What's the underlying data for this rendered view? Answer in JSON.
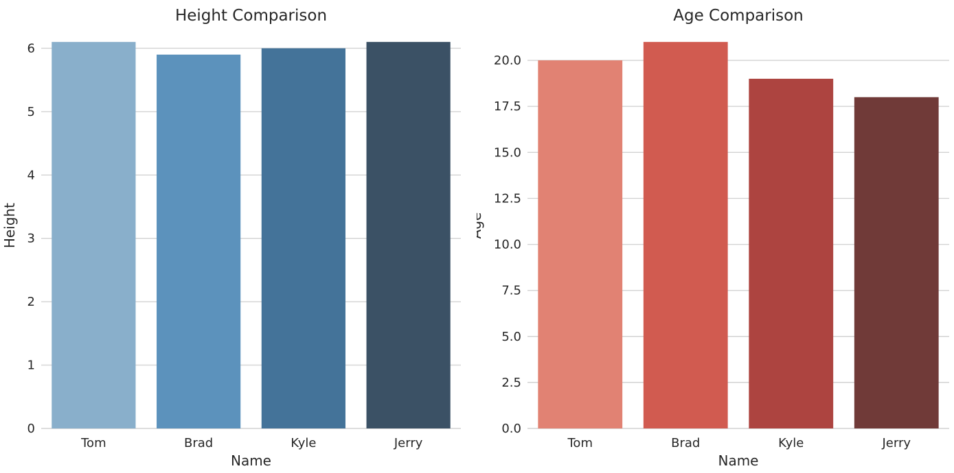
{
  "style": {
    "background": "#ffffff",
    "grid_color": "#d2d2d2",
    "text_color": "#262626"
  },
  "chart_data": [
    {
      "type": "bar",
      "title": "Height Comparison",
      "xlabel": "Name",
      "ylabel": "Height",
      "categories": [
        "Tom",
        "Brad",
        "Kyle",
        "Jerry"
      ],
      "values": [
        6.1,
        5.9,
        6.0,
        6.1
      ],
      "bar_colors": [
        "#89AFCB",
        "#5C92BC",
        "#447399",
        "#3B5165"
      ],
      "bar_width_fraction": 0.8,
      "ylim": [
        0,
        6.405
      ],
      "yticks": [
        0,
        1,
        2,
        3,
        4,
        5,
        6
      ],
      "ytick_labels": [
        "0",
        "1",
        "2",
        "3",
        "4",
        "5",
        "6"
      ],
      "grid": true,
      "legend": false
    },
    {
      "type": "bar",
      "title": "Age Comparison",
      "xlabel": "Name",
      "ylabel": "Age",
      "categories": [
        "Tom",
        "Brad",
        "Kyle",
        "Jerry"
      ],
      "values": [
        20.0,
        21.0,
        19.0,
        18.0
      ],
      "bar_colors": [
        "#E18273",
        "#D15B50",
        "#AD4440",
        "#703A38"
      ],
      "bar_width_fraction": 0.8,
      "ylim": [
        0,
        22.05
      ],
      "yticks": [
        0,
        2.5,
        5,
        7.5,
        10,
        12.5,
        15,
        17.5,
        20
      ],
      "ytick_labels": [
        "0.0",
        "2.5",
        "5.0",
        "7.5",
        "10.0",
        "12.5",
        "15.0",
        "17.5",
        "20.0"
      ],
      "grid": true,
      "legend": false
    }
  ]
}
